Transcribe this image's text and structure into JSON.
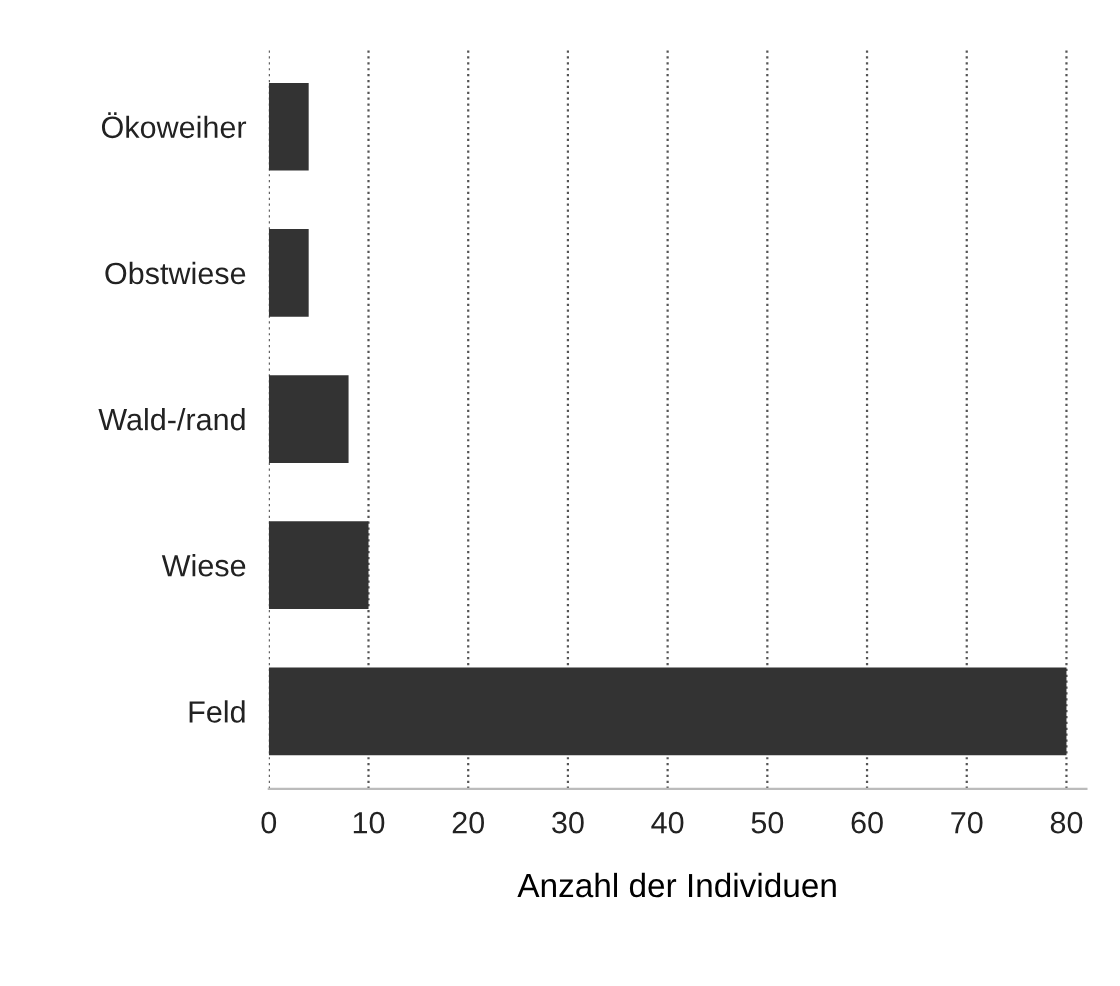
{
  "chart_data": {
    "type": "bar",
    "orientation": "horizontal",
    "xlabel": "Anzahl der Individuen",
    "categories": [
      "Ökoweiher",
      "Obstwiese",
      "Wald-/rand",
      "Wiese",
      "Feld"
    ],
    "values": [
      4,
      4,
      8,
      10,
      80
    ],
    "color": "#333333",
    "xlim": [
      0,
      82
    ],
    "xticks": [
      0,
      10,
      20,
      30,
      40,
      50,
      60,
      70,
      80
    ],
    "grid": "x"
  }
}
